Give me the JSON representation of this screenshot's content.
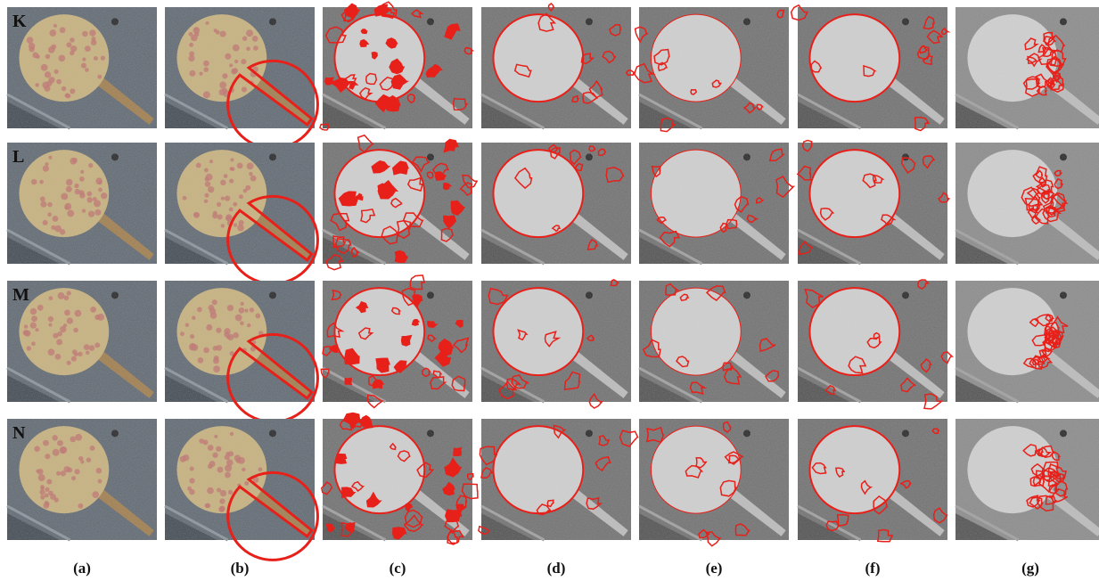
{
  "rows": [
    {
      "label": "K"
    },
    {
      "label": "L"
    },
    {
      "label": "M"
    },
    {
      "label": "N"
    }
  ],
  "columns": [
    "(a)",
    "(b)",
    "(c)",
    "(d)",
    "(e)",
    "(f)",
    "(g)"
  ]
}
